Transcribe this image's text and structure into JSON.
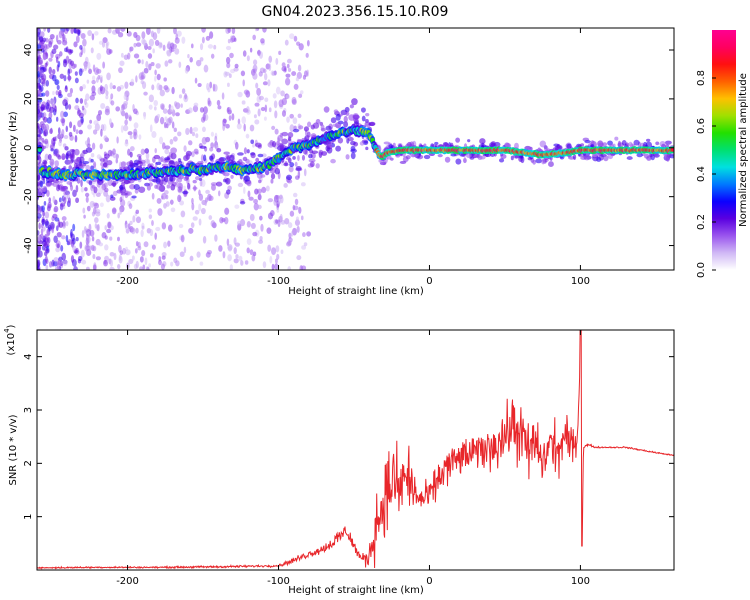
{
  "page": {
    "title": "GN04.2023.356.15.10.R09"
  },
  "chart_data": [
    {
      "type": "heatmap",
      "title": "GN04.2023.356.15.10.R09",
      "xlabel": "Height of straight line (km)",
      "ylabel": "Frequency (Hz)",
      "xlim": [
        -260,
        162
      ],
      "ylim": [
        -50,
        49
      ],
      "xticks": [
        -200,
        -100,
        0,
        100
      ],
      "yticks": [
        -40,
        -20,
        0,
        20,
        40
      ],
      "grid": false,
      "trace_frequency": [
        [
          -258,
          -10
        ],
        [
          -240,
          -11
        ],
        [
          -220,
          -11
        ],
        [
          -200,
          -11
        ],
        [
          -180,
          -10
        ],
        [
          -160,
          -9
        ],
        [
          -140,
          -8
        ],
        [
          -120,
          -9
        ],
        [
          -110,
          -8
        ],
        [
          -100,
          -4
        ],
        [
          -90,
          0
        ],
        [
          -80,
          1
        ],
        [
          -70,
          4
        ],
        [
          -60,
          6
        ],
        [
          -50,
          7
        ],
        [
          -40,
          6
        ],
        [
          -36,
          0
        ],
        [
          -32,
          -4
        ],
        [
          -28,
          -2
        ],
        [
          -20,
          -1
        ],
        [
          0,
          -1
        ],
        [
          50,
          -1
        ],
        [
          75,
          -3
        ],
        [
          90,
          -2
        ],
        [
          100,
          -1
        ],
        [
          162,
          -1
        ]
      ],
      "colorbar": {
        "label": "Normalized spectral amplitude",
        "range": [
          0,
          1
        ],
        "ticks": [
          "0.0",
          "0.2",
          "0.4",
          "0.6",
          "0.8"
        ],
        "tick_values": [
          0.0,
          0.2,
          0.4,
          0.6,
          0.8
        ],
        "colormap": [
          "#ffffff",
          "#d0b8f5",
          "#9a55ee",
          "#5a00e0",
          "#0b00ff",
          "#0078ff",
          "#00e0e0",
          "#00e070",
          "#22e000",
          "#a0e000",
          "#ffc000",
          "#ff6000",
          "#ff1010",
          "#ff0060",
          "#ff0090"
        ]
      }
    },
    {
      "type": "line",
      "xlabel": "Height of straight line (km)",
      "ylabel": "SNR (10 * v/v)",
      "scale_label": "(x10",
      "scale_exponent": "4",
      "scale_close": ")",
      "xlim": [
        -260,
        162
      ],
      "ylim": [
        0,
        4.5
      ],
      "xticks": [
        -200,
        -100,
        0,
        100
      ],
      "yticks": [
        1,
        2,
        3,
        4
      ],
      "grid": false,
      "series": [
        {
          "color": "#e8262a",
          "x": [
            -260,
            -220,
            -180,
            -140,
            -120,
            -100,
            -90,
            -80,
            -70,
            -60,
            -55,
            -50,
            -45,
            -40,
            -35,
            -30,
            -25,
            -20,
            -15,
            -10,
            -5,
            0,
            10,
            20,
            30,
            40,
            50,
            55,
            60,
            65,
            70,
            75,
            80,
            85,
            90,
            95,
            98,
            99,
            100,
            101,
            102,
            105,
            110,
            120,
            130,
            140,
            150,
            162
          ],
          "y": [
            0.04,
            0.05,
            0.05,
            0.06,
            0.07,
            0.08,
            0.18,
            0.3,
            0.4,
            0.6,
            0.75,
            0.45,
            0.2,
            0.25,
            0.9,
            1.3,
            1.7,
            1.5,
            1.8,
            1.45,
            1.3,
            1.4,
            1.9,
            2.1,
            2.2,
            2.3,
            2.5,
            2.7,
            2.6,
            2.2,
            2.4,
            2.0,
            2.4,
            2.2,
            2.5,
            2.3,
            2.5,
            3.2,
            4.2,
            0.45,
            2.3,
            2.35,
            2.3,
            2.3,
            2.3,
            2.25,
            2.2,
            2.15
          ],
          "noise_amplitude": [
            0.02,
            0.02,
            0.02,
            0.03,
            0.03,
            0.03,
            0.08,
            0.1,
            0.12,
            0.25,
            0.2,
            0.2,
            0.1,
            0.35,
            0.9,
            1.0,
            1.2,
            1.0,
            1.1,
            0.6,
            0.4,
            0.4,
            0.55,
            0.5,
            0.45,
            0.6,
            0.75,
            0.9,
            0.85,
            0.95,
            0.7,
            0.6,
            0.75,
            0.7,
            0.6,
            0.5,
            0.3,
            0.3,
            0.3,
            0.3,
            0.05,
            0.03,
            0.02,
            0.02,
            0.02,
            0.02,
            0.02,
            0.02
          ]
        }
      ]
    }
  ]
}
